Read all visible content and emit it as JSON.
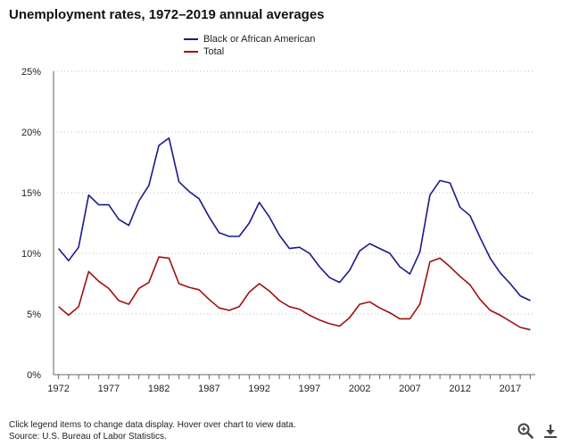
{
  "chart_data": {
    "type": "line",
    "title": "Unemployment rates, 1972–2019 annual averages",
    "xlabel": "",
    "ylabel": "",
    "x": [
      1972,
      1973,
      1974,
      1975,
      1976,
      1977,
      1978,
      1979,
      1980,
      1981,
      1982,
      1983,
      1984,
      1985,
      1986,
      1987,
      1988,
      1989,
      1990,
      1991,
      1992,
      1993,
      1994,
      1995,
      1996,
      1997,
      1998,
      1999,
      2000,
      2001,
      2002,
      2003,
      2004,
      2005,
      2006,
      2007,
      2008,
      2009,
      2010,
      2011,
      2012,
      2013,
      2014,
      2015,
      2016,
      2017,
      2018,
      2019
    ],
    "series": [
      {
        "name": "Black or African American",
        "color": "#1a1a8c",
        "values": [
          10.4,
          9.4,
          10.5,
          14.8,
          14.0,
          14.0,
          12.8,
          12.3,
          14.3,
          15.6,
          18.9,
          19.5,
          15.9,
          15.1,
          14.5,
          13.0,
          11.7,
          11.4,
          11.4,
          12.5,
          14.2,
          13.0,
          11.5,
          10.4,
          10.5,
          10.0,
          8.9,
          8.0,
          7.6,
          8.6,
          10.2,
          10.8,
          10.4,
          10.0,
          8.9,
          8.3,
          10.1,
          14.8,
          16.0,
          15.8,
          13.8,
          13.1,
          11.3,
          9.6,
          8.4,
          7.5,
          6.5,
          6.1
        ]
      },
      {
        "name": "Total",
        "color": "#a01010",
        "values": [
          5.6,
          4.9,
          5.6,
          8.5,
          7.7,
          7.1,
          6.1,
          5.8,
          7.1,
          7.6,
          9.7,
          9.6,
          7.5,
          7.2,
          7.0,
          6.2,
          5.5,
          5.3,
          5.6,
          6.8,
          7.5,
          6.9,
          6.1,
          5.6,
          5.4,
          4.9,
          4.5,
          4.2,
          4.0,
          4.7,
          5.8,
          6.0,
          5.5,
          5.1,
          4.6,
          4.6,
          5.8,
          9.3,
          9.6,
          8.9,
          8.1,
          7.4,
          6.2,
          5.3,
          4.9,
          4.4,
          3.9,
          3.7
        ]
      }
    ],
    "xticks": [
      1972,
      1977,
      1982,
      1987,
      1992,
      1997,
      2002,
      2007,
      2012,
      2017
    ],
    "xtick_labels": [
      "1972",
      "1977",
      "1982",
      "1987",
      "1992",
      "1997",
      "2002",
      "2007",
      "2012",
      "2017"
    ],
    "yticks": [
      0,
      5,
      10,
      15,
      20,
      25
    ],
    "ytick_labels": [
      "0%",
      "5%",
      "10%",
      "15%",
      "20%",
      "25%"
    ],
    "ylim": [
      0,
      25
    ],
    "xlim": [
      1971.5,
      2019.5
    ],
    "grid": true,
    "legend_position": "top-center"
  },
  "footer": {
    "note": "Click legend items to change data display. Hover over chart to view data.",
    "source": "Source: U.S. Bureau of Labor Statistics."
  },
  "tools": {
    "zoom_icon": "magnifier-zoom-icon",
    "download_icon": "download-arrow-icon"
  }
}
